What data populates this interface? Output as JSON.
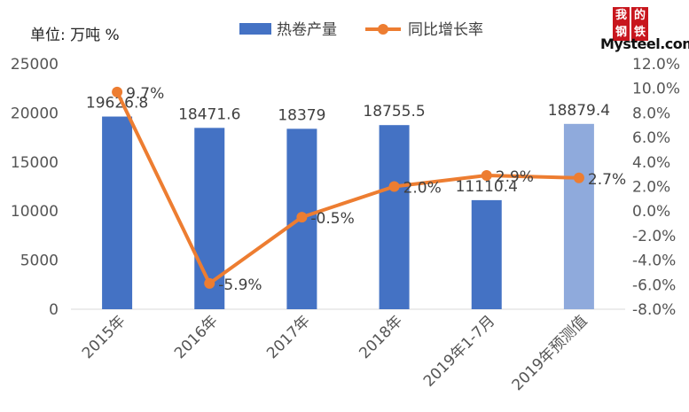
{
  "unit_label": "单位:  万吨  %",
  "logo": {
    "chars": [
      "我",
      "的",
      "钢",
      "铁"
    ],
    "word": "Mysteel.com"
  },
  "chart_data": {
    "type": "bar+line",
    "categories": [
      "2015年",
      "2016年",
      "2017年",
      "2018年",
      "2019年1-7月",
      "2019年预测值"
    ],
    "series": [
      {
        "name": "热卷产量",
        "type": "bar",
        "axis": "left",
        "values": [
          19626.8,
          18471.6,
          18379,
          18755.5,
          11110.4,
          18879.4
        ],
        "labels": [
          "19626.8",
          "18471.6",
          "18379",
          "18755.5",
          "11110.4",
          "18879.4"
        ],
        "color": "#4472c4",
        "highlight_color": "#8faadc",
        "highlight_index": 5
      },
      {
        "name": "同比增长率",
        "type": "line",
        "axis": "right",
        "values": [
          9.7,
          -5.9,
          -0.5,
          2.0,
          2.9,
          2.7
        ],
        "labels": [
          "9.7%",
          "-5.9%",
          "-0.5%",
          "2.0%",
          "2.9%",
          "2.7%"
        ],
        "color": "#ed7d31"
      }
    ],
    "y_left": {
      "min": 0,
      "max": 25000,
      "step": 5000,
      "ticks": [
        "0",
        "5000",
        "10000",
        "15000",
        "20000",
        "25000"
      ]
    },
    "y_right": {
      "min": -8,
      "max": 12,
      "step": 2,
      "ticks": [
        "-8.0%",
        "-6.0%",
        "-4.0%",
        "-2.0%",
        "0.0%",
        "2.0%",
        "4.0%",
        "6.0%",
        "8.0%",
        "10.0%",
        "12.0%"
      ]
    },
    "grid": false,
    "legend_position": "top-center"
  }
}
